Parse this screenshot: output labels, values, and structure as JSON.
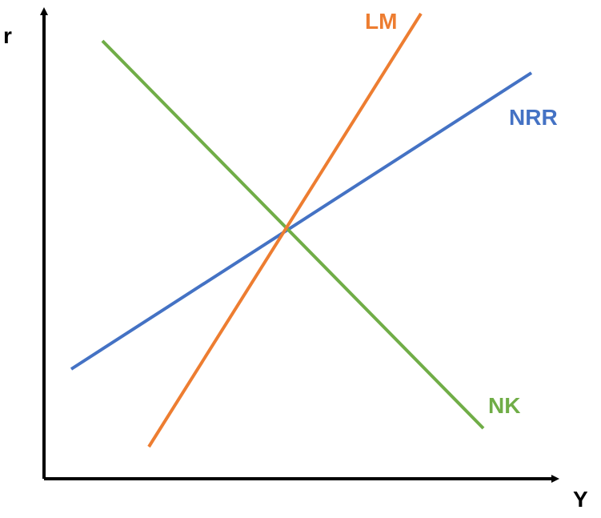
{
  "axes": {
    "y_label": "r",
    "x_label": "Y"
  },
  "curves": {
    "lm": {
      "label": "LM",
      "color": "#ED7D31"
    },
    "nrr": {
      "label": "NRR",
      "color": "#4472C4"
    },
    "nk": {
      "label": "NK",
      "color": "#70AD47"
    }
  },
  "axis_color": "#000000"
}
